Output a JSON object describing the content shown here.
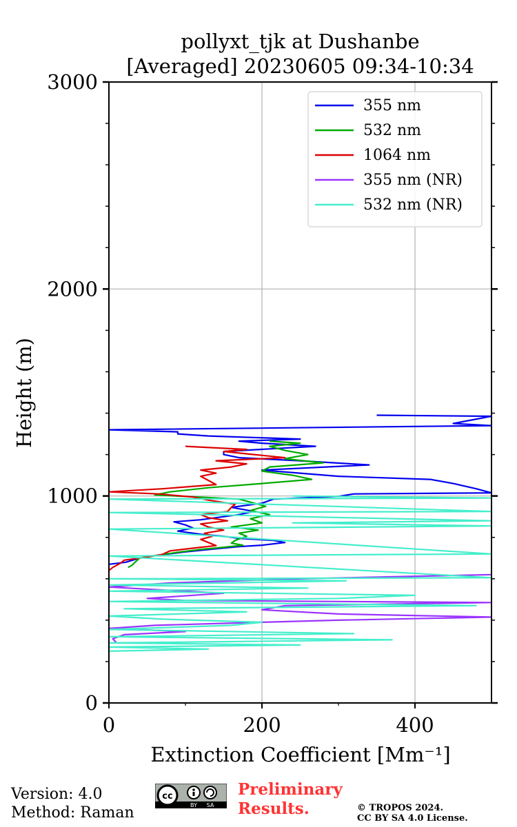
{
  "chart_data": {
    "type": "line",
    "title_line1": "pollyxt_tjk at Dushanbe",
    "title_line2": "[Averaged] 20230605 09:34-10:34",
    "xlabel": "Extinction Coefficient [Mm⁻¹]",
    "ylabel": "Height (m)",
    "xlim": [
      0,
      500
    ],
    "ylim": [
      0,
      3000
    ],
    "x_ticks": [
      0,
      200,
      400
    ],
    "x_tick_labels": [
      "0",
      "200",
      "400"
    ],
    "y_ticks": [
      0,
      1000,
      2000,
      3000
    ],
    "y_tick_labels": [
      "0",
      "1000",
      "2000",
      "3000"
    ],
    "grid": true,
    "legend_position": "top-right",
    "series": [
      {
        "name": "355 nm",
        "color": "#0000ee",
        "points": [
          [
            0,
            670
          ],
          [
            22,
            680
          ],
          [
            40,
            700
          ],
          [
            60,
            712
          ],
          [
            100,
            730
          ],
          [
            140,
            745
          ],
          [
            170,
            755
          ],
          [
            200,
            762
          ],
          [
            230,
            775
          ],
          [
            215,
            785
          ],
          [
            170,
            795
          ],
          [
            150,
            805
          ],
          [
            120,
            815
          ],
          [
            90,
            830
          ],
          [
            110,
            845
          ],
          [
            100,
            860
          ],
          [
            85,
            875
          ],
          [
            120,
            885
          ],
          [
            140,
            895
          ],
          [
            170,
            910
          ],
          [
            190,
            925
          ],
          [
            160,
            945
          ],
          [
            200,
            965
          ],
          [
            215,
            985
          ],
          [
            300,
            998
          ],
          [
            320,
            1010
          ],
          [
            500,
            1015
          ],
          [
            480,
            1035
          ],
          [
            450,
            1060
          ],
          [
            420,
            1080
          ],
          [
            300,
            1095
          ],
          [
            250,
            1110
          ],
          [
            200,
            1125
          ],
          [
            340,
            1150
          ],
          [
            250,
            1170
          ],
          [
            170,
            1185
          ],
          [
            150,
            1200
          ],
          [
            150,
            1215
          ],
          [
            270,
            1240
          ],
          [
            200,
            1255
          ],
          [
            170,
            1265
          ],
          [
            250,
            1275
          ],
          [
            130,
            1290
          ],
          [
            90,
            1300
          ],
          [
            90,
            1310
          ],
          [
            0,
            1320
          ],
          [
            500,
            1340
          ],
          [
            450,
            1350
          ],
          [
            500,
            1385
          ],
          [
            350,
            1390
          ]
        ]
      },
      {
        "name": "532 nm",
        "color": "#00aa00",
        "points": [
          [
            25,
            655
          ],
          [
            30,
            665
          ],
          [
            40,
            700
          ],
          [
            60,
            712
          ],
          [
            90,
            728
          ],
          [
            120,
            742
          ],
          [
            150,
            752
          ],
          [
            175,
            762
          ],
          [
            160,
            772
          ],
          [
            165,
            785
          ],
          [
            180,
            805
          ],
          [
            170,
            820
          ],
          [
            195,
            835
          ],
          [
            160,
            850
          ],
          [
            200,
            870
          ],
          [
            185,
            890
          ],
          [
            210,
            910
          ],
          [
            185,
            930
          ],
          [
            205,
            950
          ],
          [
            185,
            970
          ],
          [
            170,
            985
          ],
          [
            60,
            1005
          ],
          [
            80,
            1020
          ],
          [
            130,
            1040
          ],
          [
            200,
            1060
          ],
          [
            265,
            1080
          ],
          [
            240,
            1100
          ],
          [
            200,
            1120
          ],
          [
            210,
            1140
          ],
          [
            280,
            1160
          ],
          [
            230,
            1180
          ],
          [
            260,
            1200
          ],
          [
            230,
            1220
          ],
          [
            210,
            1240
          ],
          [
            250,
            1255
          ],
          [
            210,
            1265
          ]
        ]
      },
      {
        "name": "1064 nm",
        "color": "#dd0000",
        "points": [
          [
            0,
            640
          ],
          [
            5,
            655
          ],
          [
            15,
            675
          ],
          [
            20,
            690
          ],
          [
            50,
            705
          ],
          [
            70,
            718
          ],
          [
            80,
            735
          ],
          [
            110,
            748
          ],
          [
            140,
            760
          ],
          [
            130,
            775
          ],
          [
            120,
            790
          ],
          [
            135,
            805
          ],
          [
            125,
            820
          ],
          [
            150,
            835
          ],
          [
            130,
            850
          ],
          [
            120,
            865
          ],
          [
            155,
            880
          ],
          [
            130,
            895
          ],
          [
            120,
            910
          ],
          [
            155,
            925
          ],
          [
            160,
            945
          ],
          [
            165,
            960
          ],
          [
            130,
            980
          ],
          [
            110,
            995
          ],
          [
            65,
            1010
          ],
          [
            0,
            1020
          ],
          [
            70,
            1035
          ],
          [
            140,
            1055
          ],
          [
            130,
            1075
          ],
          [
            120,
            1095
          ],
          [
            140,
            1110
          ],
          [
            120,
            1125
          ],
          [
            160,
            1140
          ],
          [
            180,
            1155
          ],
          [
            140,
            1170
          ],
          [
            230,
            1185
          ],
          [
            190,
            1200
          ],
          [
            150,
            1215
          ],
          [
            180,
            1225
          ],
          [
            100,
            1240
          ]
        ]
      },
      {
        "name": "355 nm (NR)",
        "color": "#9933ff",
        "points": [
          [
            10,
            290
          ],
          [
            5,
            310
          ],
          [
            20,
            330
          ],
          [
            100,
            345
          ],
          [
            0,
            360
          ],
          [
            60,
            375
          ],
          [
            200,
            390
          ],
          [
            300,
            400
          ],
          [
            500,
            415
          ],
          [
            300,
            430
          ],
          [
            200,
            450
          ],
          [
            230,
            470
          ],
          [
            500,
            485
          ],
          [
            100,
            495
          ],
          [
            50,
            505
          ],
          [
            150,
            530
          ],
          [
            0,
            560
          ],
          [
            80,
            580
          ],
          [
            250,
            600
          ],
          [
            500,
            620
          ]
        ]
      },
      {
        "name": "532 nm (NR)",
        "color": "#44eecc",
        "points": [
          [
            0,
            250
          ],
          [
            130,
            260
          ],
          [
            0,
            270
          ],
          [
            250,
            280
          ],
          [
            0,
            290
          ],
          [
            370,
            305
          ],
          [
            0,
            320
          ],
          [
            320,
            335
          ],
          [
            0,
            355
          ],
          [
            160,
            375
          ],
          [
            200,
            390
          ],
          [
            70,
            405
          ],
          [
            0,
            420
          ],
          [
            180,
            440
          ],
          [
            20,
            455
          ],
          [
            480,
            470
          ],
          [
            0,
            490
          ],
          [
            300,
            505
          ],
          [
            400,
            520
          ],
          [
            0,
            540
          ],
          [
            260,
            555
          ],
          [
            0,
            570
          ],
          [
            310,
            590
          ],
          [
            0,
            600
          ],
          [
            500,
            605
          ],
          [
            0,
            710
          ],
          [
            500,
            720
          ],
          [
            0,
            840
          ],
          [
            500,
            855
          ],
          [
            240,
            870
          ],
          [
            500,
            880
          ],
          [
            0,
            920
          ],
          [
            500,
            925
          ],
          [
            0,
            985
          ],
          [
            500,
            990
          ],
          [
            240,
            1000
          ]
        ]
      }
    ]
  },
  "footer": {
    "version": "Version: 4.0",
    "method": "Method: Raman",
    "prelim_line1": "Preliminary",
    "prelim_line2": "Results.",
    "license_line1": "© TROPOS 2024.",
    "license_line2": "CC BY SA 4.0 License.",
    "cc_label": "cc",
    "by_label": "BY",
    "sa_label": "SA"
  }
}
